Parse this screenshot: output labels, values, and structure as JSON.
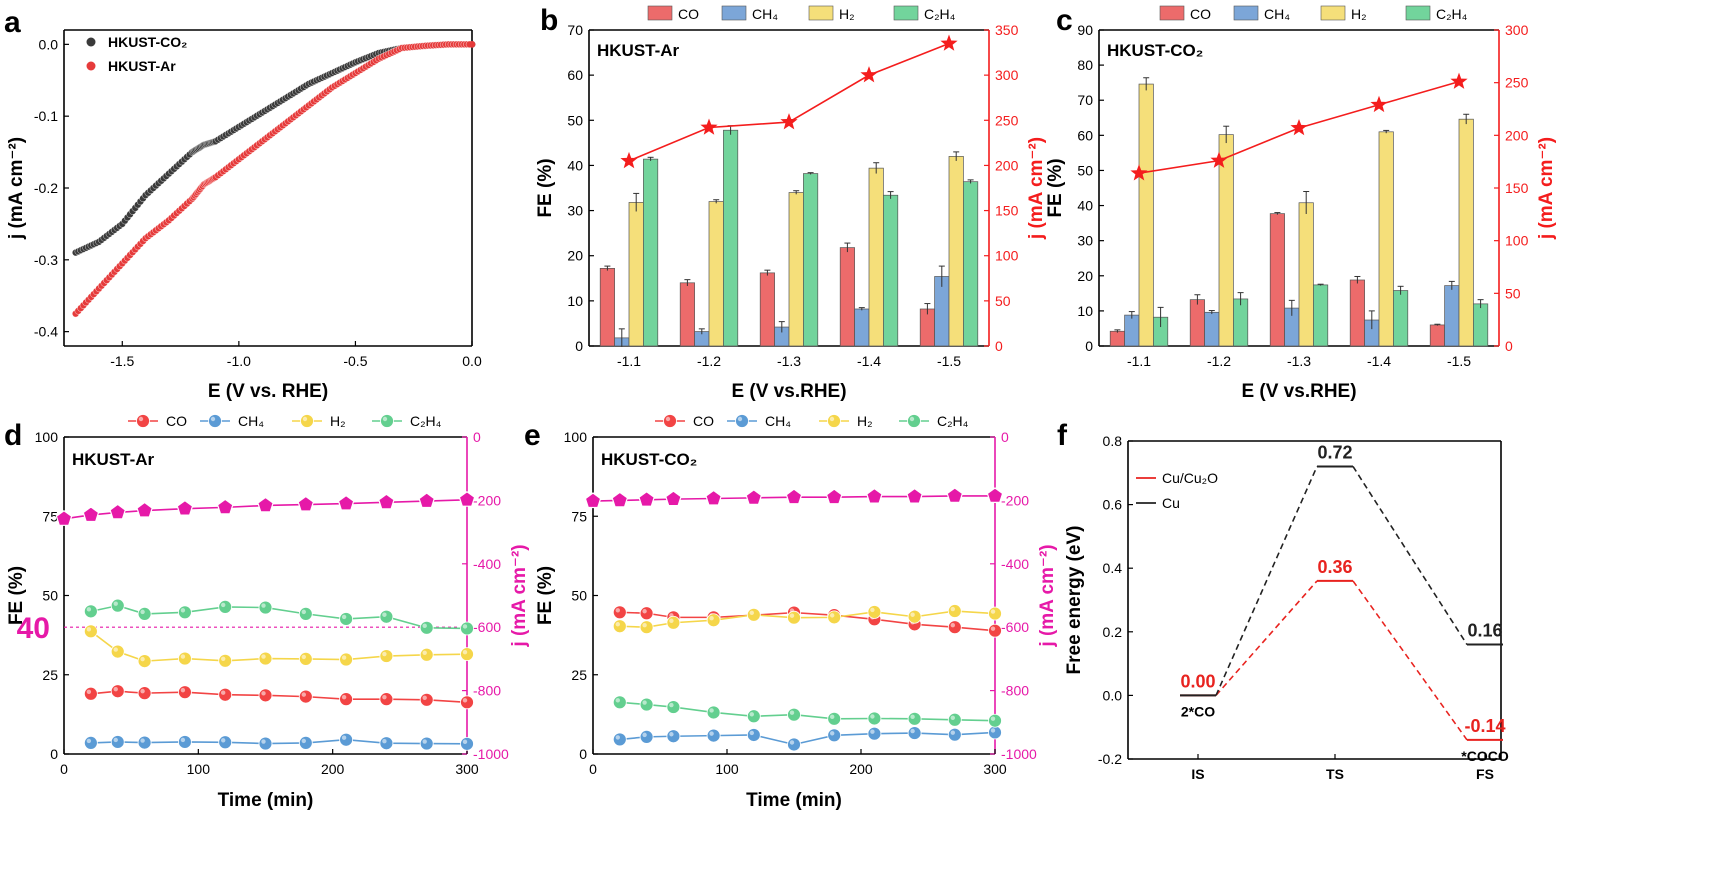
{
  "chart_data": [
    {
      "panel": "a",
      "type": "line",
      "xlabel": "E (V vs. RHE)",
      "ylabel": "j (mA cm⁻²)",
      "xlim": [
        -1.75,
        0.0
      ],
      "ylim": [
        -0.42,
        0.02
      ],
      "xticks": [
        -1.5,
        -1.0,
        -0.5,
        0.0
      ],
      "yticks": [
        -0.4,
        -0.3,
        -0.2,
        -0.1,
        0.0
      ],
      "legend_loc": "top-left",
      "series": [
        {
          "name": "HKUST-CO₂",
          "color": "#3a3a3a",
          "x": [
            -1.7,
            -1.6,
            -1.5,
            -1.4,
            -1.3,
            -1.2,
            -1.15,
            -1.1,
            -1.0,
            -0.9,
            -0.8,
            -0.7,
            -0.6,
            -0.5,
            -0.4,
            -0.3,
            -0.2,
            -0.1,
            0.0
          ],
          "y": [
            -0.29,
            -0.275,
            -0.25,
            -0.21,
            -0.18,
            -0.15,
            -0.14,
            -0.135,
            -0.115,
            -0.095,
            -0.075,
            -0.055,
            -0.04,
            -0.025,
            -0.012,
            -0.005,
            -0.002,
            0.0,
            0.0
          ]
        },
        {
          "name": "HKUST-Ar",
          "color": "#e63b3b",
          "x": [
            -1.7,
            -1.6,
            -1.5,
            -1.4,
            -1.3,
            -1.2,
            -1.15,
            -1.1,
            -1.0,
            -0.9,
            -0.8,
            -0.7,
            -0.6,
            -0.5,
            -0.4,
            -0.3,
            -0.2,
            -0.1,
            0.0
          ],
          "y": [
            -0.375,
            -0.34,
            -0.305,
            -0.27,
            -0.245,
            -0.215,
            -0.195,
            -0.185,
            -0.16,
            -0.135,
            -0.11,
            -0.085,
            -0.06,
            -0.04,
            -0.02,
            -0.005,
            -0.002,
            0.0,
            0.0
          ]
        }
      ]
    },
    {
      "panel": "b",
      "type": "bar",
      "title": "HKUST-Ar",
      "xlabel": "E (V vs.RHE)",
      "ylabel": "FE (%)",
      "y2label": "j (mA cm⁻²)",
      "categories": [
        "-1.1",
        "-1.2",
        "-1.3",
        "-1.4",
        "-1.5"
      ],
      "ylim": [
        0,
        70
      ],
      "yticks": [
        0,
        10,
        20,
        30,
        40,
        50,
        60,
        70
      ],
      "y2lim": [
        0,
        350
      ],
      "y2ticks": [
        0,
        50,
        100,
        150,
        200,
        250,
        300,
        350
      ],
      "legend_loc": "top",
      "series": [
        {
          "name": "CO",
          "color": "#ec6b6b",
          "values": [
            17.2,
            14.0,
            16.2,
            21.8,
            8.2
          ],
          "err": [
            0.5,
            0.7,
            0.6,
            1.0,
            1.2
          ]
        },
        {
          "name": "CH₄",
          "color": "#7ca6d8",
          "values": [
            1.8,
            3.2,
            4.2,
            8.2,
            15.4
          ],
          "err": [
            2.0,
            0.6,
            1.2,
            0.3,
            2.3
          ]
        },
        {
          "name": "H₂",
          "color": "#f5df7a",
          "values": [
            31.8,
            32.0,
            34.0,
            39.4,
            42.0
          ],
          "err": [
            2.0,
            0.4,
            0.4,
            1.2,
            1.0
          ]
        },
        {
          "name": "C₂H₄",
          "color": "#72d49c",
          "values": [
            41.4,
            47.8,
            38.2,
            33.4,
            36.4
          ],
          "err": [
            0.4,
            1.0,
            0.2,
            0.8,
            0.4
          ]
        }
      ],
      "current": {
        "color": "#f41d1d",
        "values": [
          205,
          242,
          248,
          300,
          335
        ]
      }
    },
    {
      "panel": "c",
      "type": "bar",
      "title": "HKUST-CO₂",
      "xlabel": "E (V vs.RHE)",
      "ylabel": "FE (%)",
      "y2label": "j (mA cm⁻²)",
      "categories": [
        "-1.1",
        "-1.2",
        "-1.3",
        "-1.4",
        "-1.5"
      ],
      "ylim": [
        0,
        90
      ],
      "yticks": [
        0,
        10,
        20,
        30,
        40,
        50,
        60,
        70,
        80,
        90
      ],
      "y2lim": [
        0,
        300
      ],
      "y2ticks": [
        0,
        50,
        100,
        150,
        200,
        250,
        300
      ],
      "legend_loc": "top",
      "series": [
        {
          "name": "CO",
          "color": "#ec6b6b",
          "values": [
            4.2,
            13.2,
            37.7,
            18.8,
            6.0
          ],
          "err": [
            0.4,
            1.4,
            0.3,
            1.0,
            0.2
          ]
        },
        {
          "name": "CH₄",
          "color": "#7ca6d8",
          "values": [
            8.8,
            9.6,
            10.8,
            7.4,
            17.2
          ],
          "err": [
            1.0,
            0.5,
            2.2,
            2.6,
            1.2
          ]
        },
        {
          "name": "H₂",
          "color": "#f5df7a",
          "values": [
            74.6,
            60.2,
            40.8,
            61.0,
            64.6
          ],
          "err": [
            1.8,
            2.4,
            3.2,
            0.4,
            1.4
          ]
        },
        {
          "name": "C₂H₄",
          "color": "#72d49c",
          "values": [
            8.2,
            13.4,
            17.4,
            15.8,
            12.0
          ],
          "err": [
            2.8,
            1.8,
            0.2,
            1.2,
            1.2
          ]
        }
      ],
      "current": {
        "color": "#f41d1d",
        "values": [
          164,
          176,
          207,
          229,
          251
        ]
      }
    },
    {
      "panel": "d",
      "type": "line",
      "title": "HKUST-Ar",
      "xlabel": "Time (min)",
      "ylabel": "FE (%)",
      "y2label": "j (mA cm⁻²)",
      "xlim": [
        0,
        300
      ],
      "xticks": [
        0,
        100,
        200,
        300
      ],
      "ylim": [
        0,
        100
      ],
      "yticks": [
        0,
        25,
        50,
        75,
        100
      ],
      "y2lim": [
        -1000,
        0
      ],
      "y2ticks": [
        -1000,
        -800,
        -600,
        -400,
        -200,
        0
      ],
      "legend_loc": "top",
      "annotation": {
        "label": "40",
        "value": 40,
        "color": "#e619a8"
      },
      "x": [
        20,
        40,
        60,
        90,
        120,
        150,
        180,
        210,
        240,
        270,
        300
      ],
      "series": [
        {
          "name": "CO",
          "color": "#f24444",
          "values": [
            19.0,
            19.8,
            19.2,
            19.5,
            18.7,
            18.5,
            18.1,
            17.3,
            17.3,
            17.1,
            16.3
          ]
        },
        {
          "name": "CH₄",
          "color": "#5b9bd5",
          "values": [
            3.5,
            3.8,
            3.6,
            3.8,
            3.7,
            3.3,
            3.5,
            4.5,
            3.4,
            3.3,
            3.2
          ]
        },
        {
          "name": "H₂",
          "color": "#f5d64a",
          "values": [
            38.7,
            32.3,
            29.3,
            30.1,
            29.4,
            30.1,
            30.0,
            29.8,
            30.9,
            31.3,
            31.5
          ]
        },
        {
          "name": "C₂H₄",
          "color": "#63cf8f",
          "values": [
            45.0,
            46.8,
            44.2,
            44.7,
            46.4,
            46.2,
            44.2,
            42.6,
            43.3,
            39.8,
            39.6
          ]
        }
      ],
      "current": {
        "name": "j",
        "color": "#e619a8",
        "x": [
          0,
          20,
          40,
          60,
          90,
          120,
          150,
          180,
          210,
          240,
          270,
          300
        ],
        "values": [
          -258,
          -246,
          -238,
          -232,
          -226,
          -222,
          -216,
          -213,
          -210,
          -206,
          -202,
          -198
        ]
      }
    },
    {
      "panel": "e",
      "type": "line",
      "title": "HKUST-CO₂",
      "xlabel": "Time (min)",
      "ylabel": "FE (%)",
      "y2label": "j (mA cm⁻²)",
      "xlim": [
        0,
        300
      ],
      "xticks": [
        0,
        100,
        200,
        300
      ],
      "ylim": [
        0,
        100
      ],
      "yticks": [
        0,
        25,
        50,
        75,
        100
      ],
      "y2lim": [
        -1000,
        0
      ],
      "y2ticks": [
        -1000,
        -800,
        -600,
        -400,
        -200,
        0
      ],
      "legend_loc": "top",
      "x": [
        20,
        40,
        60,
        90,
        120,
        150,
        180,
        210,
        240,
        270,
        300
      ],
      "series": [
        {
          "name": "CO",
          "color": "#f24444",
          "values": [
            44.7,
            44.4,
            43.1,
            43.1,
            43.8,
            44.6,
            43.8,
            42.5,
            40.9,
            40.0,
            38.9
          ]
        },
        {
          "name": "CH₄",
          "color": "#5b9bd5",
          "values": [
            4.6,
            5.4,
            5.6,
            5.8,
            6.0,
            3.0,
            5.9,
            6.4,
            6.6,
            6.1,
            6.8
          ]
        },
        {
          "name": "H₂",
          "color": "#f5d64a",
          "values": [
            40.3,
            40.0,
            41.4,
            42.2,
            43.9,
            43.0,
            43.1,
            44.8,
            43.3,
            45.1,
            44.3
          ]
        },
        {
          "name": "C₂H₄",
          "color": "#63cf8f",
          "values": [
            16.3,
            15.6,
            14.8,
            13.1,
            11.9,
            12.4,
            11.1,
            11.2,
            11.1,
            10.8,
            10.5
          ]
        }
      ],
      "current": {
        "name": "j",
        "color": "#e619a8",
        "x": [
          0,
          20,
          40,
          60,
          90,
          120,
          150,
          180,
          210,
          240,
          270,
          300
        ],
        "values": [
          -202,
          -200,
          -198,
          -196,
          -194,
          -192,
          -190,
          -190,
          -188,
          -188,
          -186,
          -186
        ]
      }
    },
    {
      "panel": "f",
      "type": "line",
      "ylabel": "Free energy (eV)",
      "categories": [
        "IS",
        "TS",
        "FS"
      ],
      "ylim": [
        -0.2,
        0.8
      ],
      "yticks": [
        -0.2,
        0.0,
        0.2,
        0.4,
        0.6,
        0.8
      ],
      "legend_loc": "top-left",
      "series": [
        {
          "name": "Cu/Cu₂O",
          "color": "#e8231f",
          "values": [
            0.0,
            0.36,
            -0.14
          ],
          "labels": [
            "0.00",
            "0.36",
            "-0.14"
          ]
        },
        {
          "name": "Cu",
          "color": "#222222",
          "values": [
            0.0,
            0.72,
            0.16
          ],
          "labels": [
            "",
            "0.72",
            "0.16"
          ]
        }
      ],
      "state_labels": [
        {
          "category": "IS",
          "text": "2*CO"
        },
        {
          "category": "FS",
          "text": "*COCO"
        }
      ]
    }
  ],
  "panels": [
    "a",
    "b",
    "c",
    "d",
    "e",
    "f"
  ]
}
